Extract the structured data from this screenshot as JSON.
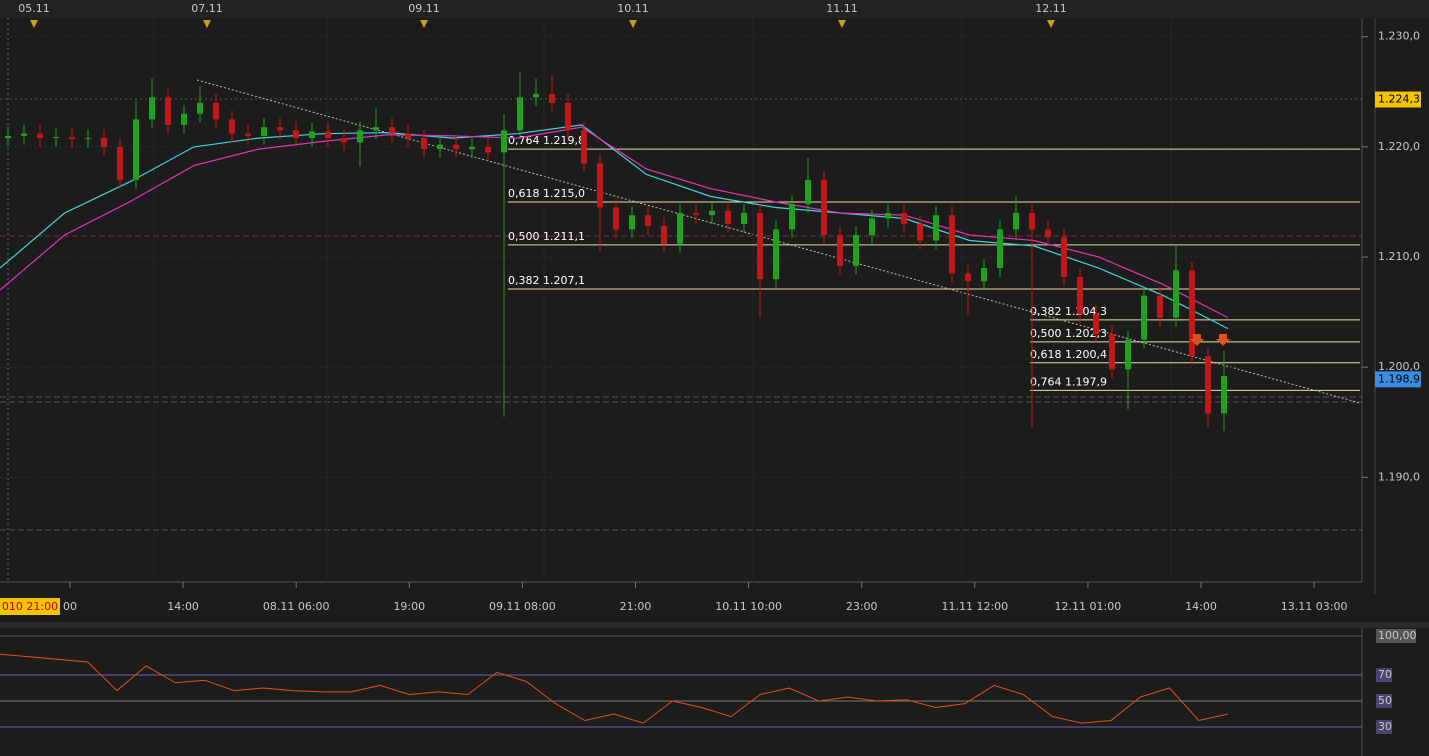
{
  "chart_data": [
    {
      "type": "candlestick",
      "top_dates": [
        "05.11",
        "07.11",
        "09.11",
        "10.11",
        "11.11",
        "12.11"
      ],
      "time_labels": [
        "010 21:00",
        "00",
        "14:00",
        "08.11 06:00",
        "19:00",
        "09.11 08:00",
        "21:00",
        "10.11 10:00",
        "23:00",
        "11.11 12:00",
        "12.11 01:00",
        "14:00",
        "13.11 03:00"
      ],
      "ylim": [
        1.1805,
        1.2317
      ],
      "yticks": [
        {
          "value": 1.23,
          "label": "1.230,0"
        },
        {
          "value": 1.22,
          "label": "1.220,0"
        },
        {
          "value": 1.21,
          "label": "1.210,0"
        },
        {
          "value": 1.2,
          "label": "1.200,0"
        },
        {
          "value": 1.19,
          "label": "1.190,0"
        }
      ],
      "price_labels": [
        {
          "value": 1.2243,
          "label": "1.224,3",
          "color": "#f5c400"
        },
        {
          "value": 1.1989,
          "label": "1.198,9",
          "color": "#3a8ee6"
        }
      ],
      "fib_sets": [
        [
          {
            "value": 1.2198,
            "label": "0,764 1.219,8"
          },
          {
            "value": 1.215,
            "label": "0,618 1.215,0"
          },
          {
            "value": 1.2111,
            "label": "0,500 1.211,1"
          },
          {
            "value": 1.2071,
            "label": "0,382 1.207,1"
          }
        ],
        [
          {
            "value": 1.2043,
            "label": "0,382 1.204,3"
          },
          {
            "value": 1.2023,
            "label": "0,500 1.202,3"
          },
          {
            "value": 1.2004,
            "label": "0,618 1.200,4"
          },
          {
            "value": 1.1979,
            "label": "0,764 1.197,9"
          }
        ]
      ],
      "up_color": "#1fa31f",
      "down_color": "#c41818",
      "open": [
        1.2208,
        1.221,
        1.2212,
        1.2208,
        1.2209,
        1.2207,
        1.2208,
        1.22,
        1.217,
        1.2225,
        1.2245,
        1.222,
        1.223,
        1.224,
        1.2225,
        1.2212,
        1.221,
        1.2218,
        1.2215,
        1.2208,
        1.2214,
        1.2208,
        1.2204,
        1.2215,
        1.2218,
        1.2212,
        1.2208,
        1.2198,
        1.2202,
        1.2198,
        1.22,
        1.2195,
        1.2215,
        1.2245,
        1.2248,
        1.224,
        1.2215,
        1.2185,
        1.2145,
        1.2125,
        1.2138,
        1.2128,
        1.2112,
        1.214,
        1.2138,
        1.2142,
        1.213,
        1.214,
        1.208,
        1.2125,
        1.2148,
        1.217,
        1.212,
        1.2092,
        1.212,
        1.2135,
        1.214,
        1.213,
        1.2115,
        1.2138,
        1.2085,
        1.2078,
        1.209,
        1.2125,
        1.214,
        1.2125,
        1.2118,
        1.2082,
        1.2048,
        1.203,
        1.1998,
        1.2025,
        1.2065,
        1.2045,
        1.2088,
        1.201,
        1.1958
      ],
      "high": [
        1.2218,
        1.222,
        1.222,
        1.2217,
        1.2217,
        1.2216,
        1.2216,
        1.2208,
        1.2242,
        1.2262,
        1.2253,
        1.2238,
        1.2255,
        1.2248,
        1.2233,
        1.222,
        1.2226,
        1.2226,
        1.2223,
        1.2222,
        1.2222,
        1.2216,
        1.2223,
        1.2235,
        1.2226,
        1.222,
        1.2216,
        1.221,
        1.221,
        1.2208,
        1.2208,
        1.223,
        1.2268,
        1.2262,
        1.2265,
        1.2248,
        1.2223,
        1.2193,
        1.2153,
        1.2146,
        1.2146,
        1.2136,
        1.2148,
        1.2148,
        1.215,
        1.215,
        1.2148,
        1.2148,
        1.2133,
        1.2156,
        1.219,
        1.2178,
        1.2128,
        1.2128,
        1.2143,
        1.2148,
        1.2148,
        1.2138,
        1.2146,
        1.2146,
        1.2093,
        1.2098,
        1.2133,
        1.2155,
        1.2148,
        1.2133,
        1.2126,
        1.209,
        1.2056,
        1.2038,
        1.2033,
        1.2073,
        1.2073,
        1.211,
        1.2096,
        1.2018,
        1.2015
      ],
      "low": [
        1.22,
        1.2202,
        1.22,
        1.22,
        1.2199,
        1.2199,
        1.2192,
        1.2162,
        1.2162,
        1.2217,
        1.2212,
        1.2212,
        1.2222,
        1.2217,
        1.2204,
        1.2202,
        1.2202,
        1.2207,
        1.22,
        1.22,
        1.22,
        1.2196,
        1.2182,
        1.2207,
        1.2204,
        1.22,
        1.219,
        1.219,
        1.219,
        1.219,
        1.2187,
        1.1955,
        1.2207,
        1.2237,
        1.2232,
        1.2207,
        1.2177,
        1.2105,
        1.2117,
        1.2117,
        1.212,
        1.2104,
        1.2104,
        1.213,
        1.213,
        1.2122,
        1.2122,
        1.2045,
        1.2072,
        1.2117,
        1.214,
        1.2112,
        1.2084,
        1.2084,
        1.2112,
        1.2127,
        1.2122,
        1.2107,
        1.2107,
        1.2077,
        1.2048,
        1.207,
        1.2082,
        1.2117,
        1.1945,
        1.211,
        1.2074,
        1.204,
        1.2022,
        1.199,
        1.1962,
        1.2017,
        1.2037,
        1.2037,
        1.2002,
        1.1945,
        1.1942
      ],
      "close": [
        1.221,
        1.2212,
        1.2208,
        1.2209,
        1.2207,
        1.2208,
        1.22,
        1.217,
        1.2225,
        1.2245,
        1.222,
        1.223,
        1.224,
        1.2225,
        1.2212,
        1.221,
        1.2218,
        1.2215,
        1.2208,
        1.2214,
        1.2208,
        1.2204,
        1.2215,
        1.2218,
        1.2212,
        1.2208,
        1.2198,
        1.2202,
        1.2198,
        1.22,
        1.2195,
        1.2215,
        1.2245,
        1.2248,
        1.224,
        1.2215,
        1.2185,
        1.2145,
        1.2125,
        1.2138,
        1.2128,
        1.2112,
        1.214,
        1.2138,
        1.2142,
        1.213,
        1.214,
        1.208,
        1.2125,
        1.2148,
        1.217,
        1.212,
        1.2092,
        1.212,
        1.2135,
        1.214,
        1.213,
        1.2115,
        1.2138,
        1.2085,
        1.2078,
        1.209,
        1.2125,
        1.214,
        1.2125,
        1.2118,
        1.2082,
        1.2048,
        1.203,
        1.1998,
        1.2025,
        1.2065,
        1.2045,
        1.2088,
        1.201,
        1.1958,
        1.1992
      ],
      "series": [
        {
          "color": "#3fd6d6",
          "values": [
            1.209,
            1.214,
            1.2168,
            1.22,
            1.2208,
            1.2212,
            1.2213,
            1.2208,
            1.2212,
            1.222,
            1.2175,
            1.2155,
            1.2145,
            1.214,
            1.2135,
            1.2115,
            1.211,
            1.209,
            1.2065,
            1.2035
          ]
        },
        {
          "color": "#e033b8",
          "values": [
            1.207,
            1.212,
            1.215,
            1.2183,
            1.2198,
            1.2205,
            1.2211,
            1.221,
            1.2208,
            1.2218,
            1.218,
            1.2162,
            1.215,
            1.214,
            1.2138,
            1.212,
            1.2115,
            1.21,
            1.2075,
            1.2045
          ]
        }
      ]
    },
    {
      "type": "line",
      "ylim": [
        7.7,
        106.2
      ],
      "yticks": [
        {
          "value": 100,
          "label": "100,00"
        },
        70,
        50,
        30
      ],
      "color": "#e0501a",
      "values": [
        86,
        84,
        82,
        80,
        58,
        77,
        64,
        66,
        58,
        60,
        58,
        57,
        57,
        62,
        55,
        57,
        55,
        72,
        65,
        48,
        35,
        40,
        33,
        50,
        45,
        38,
        55,
        60,
        50,
        53,
        50,
        51,
        45,
        48,
        62,
        55,
        38,
        33,
        35,
        53,
        60,
        35,
        40
      ]
    }
  ]
}
